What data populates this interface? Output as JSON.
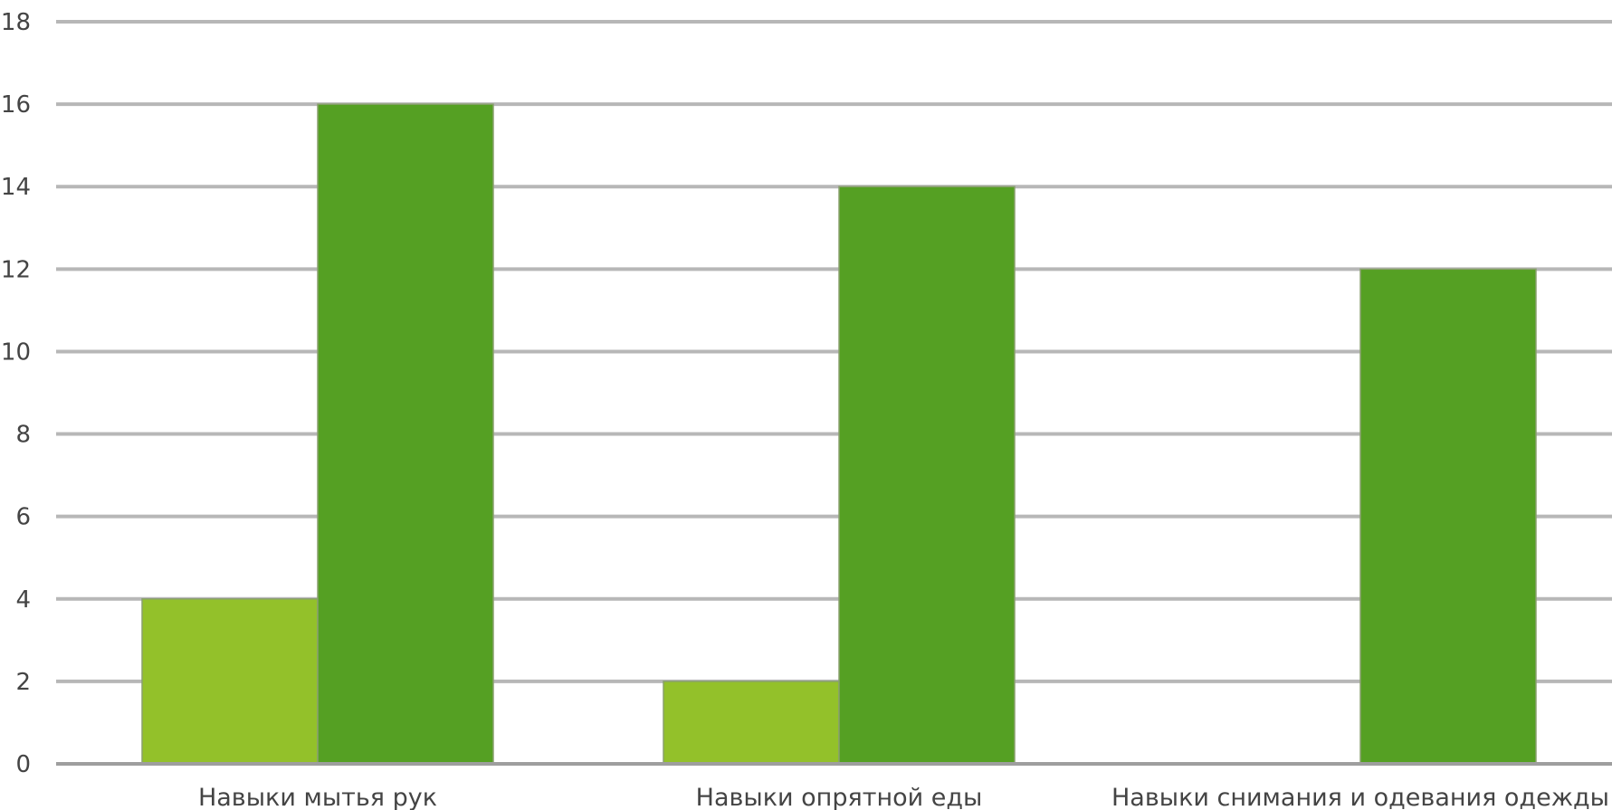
{
  "chart_data": {
    "type": "bar",
    "categories": [
      "Навыки мытья рук",
      "Навыки опрятной еды",
      "Навыки снимания и одевания одежды"
    ],
    "series": [
      {
        "values": [
          4,
          2,
          0
        ],
        "color": "#93c12a"
      },
      {
        "values": [
          16,
          14,
          12
        ],
        "color": "#55a023"
      }
    ],
    "yticks": [
      0,
      2,
      4,
      6,
      8,
      10,
      12,
      14,
      16,
      18
    ],
    "ylim": [
      0,
      18
    ],
    "grid": true,
    "legend": "none"
  }
}
